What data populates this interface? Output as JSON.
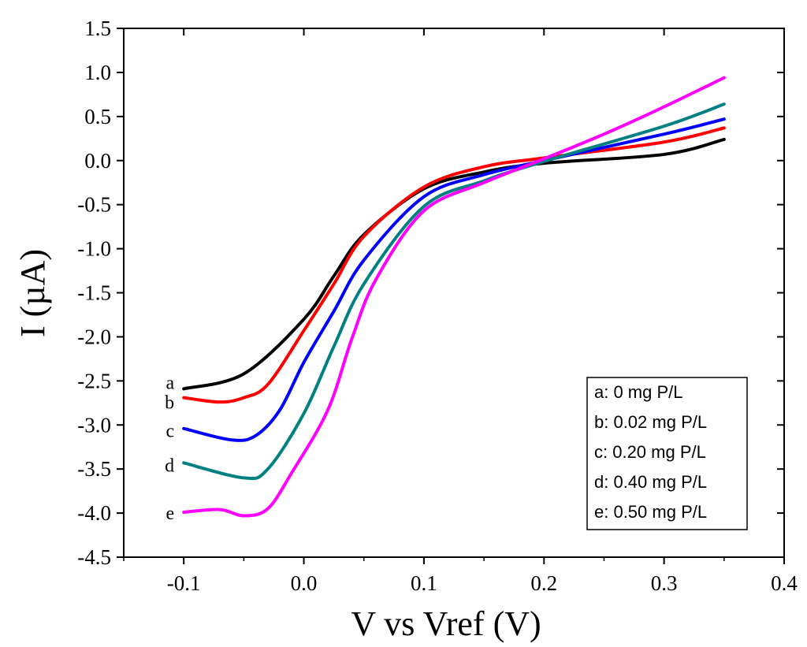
{
  "chart_data": {
    "type": "line",
    "title": "",
    "xlabel": "V vs Vref (V)",
    "ylabel": "I (µA)",
    "xlim": [
      -0.15,
      0.4
    ],
    "ylim": [
      -4.5,
      1.5
    ],
    "xticks": [
      -0.1,
      0.0,
      0.1,
      0.2,
      0.3,
      0.4
    ],
    "xtick_labels": [
      "-0.1",
      "0.0",
      "0.1",
      "0.2",
      "0.3",
      "0.4"
    ],
    "yticks": [
      1.5,
      1.0,
      0.5,
      0.0,
      -0.5,
      -1.0,
      -1.5,
      -2.0,
      -2.5,
      -3.0,
      -3.5,
      -4.0,
      -4.5
    ],
    "ytick_labels": [
      "1.5",
      "1.0",
      "0.5",
      "0.0",
      "-0.5",
      "-1.0",
      "-1.5",
      "-2.0",
      "-2.5",
      "-3.0",
      "-3.5",
      "-4.0",
      "-4.5"
    ],
    "grid": false,
    "legend_position": "bottom-right",
    "series": [
      {
        "name": "a: 0 mg P/L",
        "label": "a",
        "color": "#000000",
        "x": [
          -0.1,
          -0.05,
          0.0,
          0.025,
          0.05,
          0.1,
          0.15,
          0.2,
          0.3,
          0.35
        ],
        "y": [
          -2.59,
          -2.42,
          -1.8,
          -1.31,
          -0.84,
          -0.32,
          -0.13,
          -0.03,
          0.07,
          0.24
        ]
      },
      {
        "name": "b: 0.02 mg P/L",
        "label": "b",
        "color": "#ff0000",
        "x": [
          -0.1,
          -0.07,
          -0.05,
          -0.03,
          0.0,
          0.025,
          0.05,
          0.1,
          0.15,
          0.2,
          0.3,
          0.35
        ],
        "y": [
          -2.69,
          -2.74,
          -2.69,
          -2.54,
          -1.93,
          -1.4,
          -0.86,
          -0.3,
          -0.07,
          0.03,
          0.21,
          0.37
        ]
      },
      {
        "name": "c: 0.20 mg P/L",
        "label": "c",
        "color": "#0000ff",
        "x": [
          -0.1,
          -0.06,
          -0.04,
          -0.02,
          0.0,
          0.025,
          0.05,
          0.1,
          0.15,
          0.2,
          0.3,
          0.35
        ],
        "y": [
          -3.04,
          -3.17,
          -3.12,
          -2.83,
          -2.29,
          -1.71,
          -1.13,
          -0.41,
          -0.16,
          0.0,
          0.3,
          0.47
        ]
      },
      {
        "name": "d: 0.40 mg P/L",
        "label": "d",
        "color": "#008080",
        "x": [
          -0.1,
          -0.05,
          -0.03,
          0.0,
          0.025,
          0.05,
          0.1,
          0.15,
          0.2,
          0.3,
          0.35
        ],
        "y": [
          -3.43,
          -3.6,
          -3.5,
          -2.87,
          -2.11,
          -1.4,
          -0.52,
          -0.23,
          -0.01,
          0.39,
          0.64
        ]
      },
      {
        "name": "e: 0.50 mg P/L",
        "label": "e",
        "color": "#ff00ff",
        "x": [
          -0.1,
          -0.07,
          -0.05,
          -0.03,
          -0.01,
          0.02,
          0.04,
          0.06,
          0.1,
          0.15,
          0.2,
          0.25,
          0.3,
          0.35
        ],
        "y": [
          -3.99,
          -3.96,
          -4.03,
          -3.95,
          -3.54,
          -2.83,
          -2.02,
          -1.35,
          -0.57,
          -0.25,
          0.02,
          0.3,
          0.61,
          0.94
        ]
      }
    ]
  }
}
